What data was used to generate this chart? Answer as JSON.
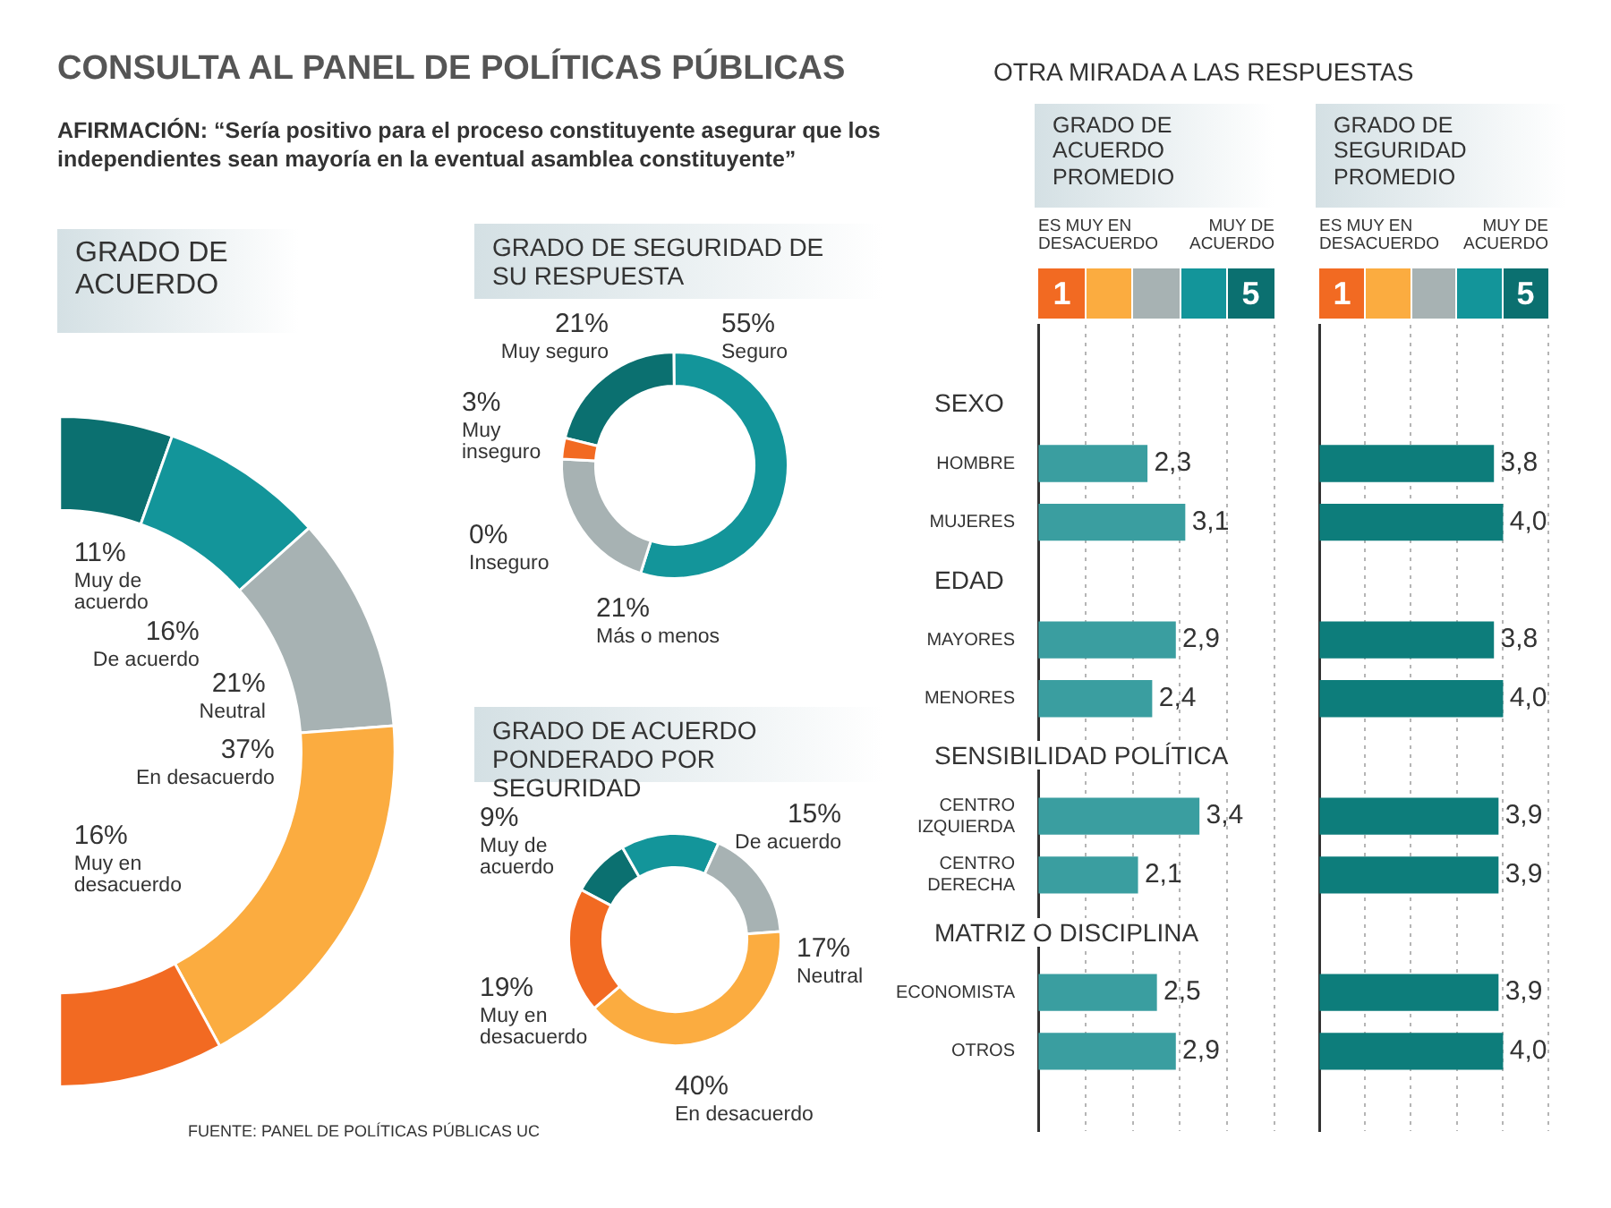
{
  "chart_data": [
    {
      "type": "donut",
      "title": "GRADO DE ACUERDO",
      "categories": [
        "Muy de acuerdo",
        "De acuerdo",
        "Neutral",
        "En desacuerdo",
        "Muy en desacuerdo"
      ],
      "values": [
        11,
        16,
        21,
        37,
        16
      ],
      "colors": [
        "#0b7070",
        "#13959a",
        "#a7b2b3",
        "#fbac40",
        "#f26a22"
      ],
      "value_labels": [
        "11%",
        "16%",
        "21%",
        "37%",
        "16%"
      ],
      "annotations": [
        "CONSULTA AL PANEL DE POLÍTICAS PÚBLICAS",
        "AFIRMACIÓN: “Sería positivo para el proceso constituyente asegurar que los independientes sean mayoría en la eventual asamblea constituyente”",
        "FUENTE: PANEL DE POLÍTICAS PÚBLICAS UC"
      ]
    },
    {
      "type": "donut",
      "title": "GRADO DE SEGURIDAD DE SU RESPUESTA",
      "categories": [
        "Muy seguro",
        "Seguro",
        "Más o menos",
        "Inseguro",
        "Muy inseguro"
      ],
      "values": [
        21,
        55,
        21,
        0,
        3
      ],
      "colors": [
        "#0b7070",
        "#13959a",
        "#a7b2b3",
        "#7d8a8b",
        "#f26a22"
      ],
      "value_labels": [
        "21%",
        "55%",
        "21%",
        "0%",
        "3%"
      ]
    },
    {
      "type": "donut",
      "title": "GRADO DE ACUERDO PONDERADO POR  SEGURIDAD",
      "categories": [
        "Muy de acuerdo",
        "De acuerdo",
        "Neutral",
        "En desacuerdo",
        "Muy en desacuerdo"
      ],
      "values": [
        9,
        15,
        17,
        40,
        19
      ],
      "colors": [
        "#0b7070",
        "#13959a",
        "#a7b2b3",
        "#fbac40",
        "#f26a22"
      ],
      "value_labels": [
        "9%",
        "15%",
        "17%",
        "40%",
        "19%"
      ]
    },
    {
      "type": "bar",
      "orientation": "horizontal",
      "subtitle": "OTRA MIRADA A LAS RESPUESTAS",
      "title": "GRADO DE ACUERDO PROMEDIO",
      "categories": [
        "HOMBRE",
        "MUJERES",
        "MAYORES",
        "MENORES",
        "CENTRO IZQUIERDA",
        "CENTRO DERECHA",
        "ECONOMISTA",
        "OTROS"
      ],
      "values": [
        2.3,
        3.1,
        2.9,
        2.4,
        3.4,
        2.1,
        2.5,
        2.9
      ],
      "color": "#3a9ea0",
      "value_labels": [
        "2,3",
        "3,1",
        "2,9",
        "2,4",
        "3,4",
        "2,1",
        "2,5",
        "2,9"
      ],
      "xlim": [
        0,
        5
      ],
      "xticks": [
        {
          "value": 0,
          "label": null
        },
        {
          "value": 0.5,
          "label": "1"
        },
        {
          "value": 1,
          "label": null
        },
        {
          "value": 2,
          "label": null
        },
        {
          "value": 3,
          "label": null
        },
        {
          "value": 4,
          "label": null
        },
        {
          "value": 4.5,
          "label": "5"
        },
        {
          "value": 5,
          "label": null
        }
      ],
      "grid": "x",
      "annotations": [
        "ES MUY EN DESACUERDO",
        "MUY DE ACUERDO",
        "SEXO",
        "EDAD",
        "SENSIBILIDAD POLÍTICA",
        "MATRIZ O DISCIPLINA"
      ]
    },
    {
      "type": "bar",
      "orientation": "horizontal",
      "title": "GRADO DE SEGURIDAD PROMEDIO",
      "categories": [
        null,
        null,
        null,
        null,
        null,
        null,
        null,
        null
      ],
      "values": [
        3.8,
        4.0,
        3.8,
        4.0,
        3.9,
        3.9,
        3.9,
        4.0
      ],
      "color": "#0d7d7b",
      "value_labels": [
        "3,8",
        "4,0",
        "3,8",
        "4,0",
        "3,9",
        "3,9",
        "3,9",
        "4,0"
      ],
      "xlim": [
        0,
        5
      ],
      "xticks": [
        {
          "value": 0,
          "label": null
        },
        {
          "value": 0.5,
          "label": "1"
        },
        {
          "value": 1,
          "label": null
        },
        {
          "value": 2,
          "label": null
        },
        {
          "value": 3,
          "label": null
        },
        {
          "value": 4,
          "label": null
        },
        {
          "value": 4.5,
          "label": "5"
        },
        {
          "value": 5,
          "label": null
        }
      ],
      "grid": "x",
      "annotations": [
        "ES MUY EN DESACUERDO",
        "MUY DE ACUERDO"
      ]
    }
  ]
}
